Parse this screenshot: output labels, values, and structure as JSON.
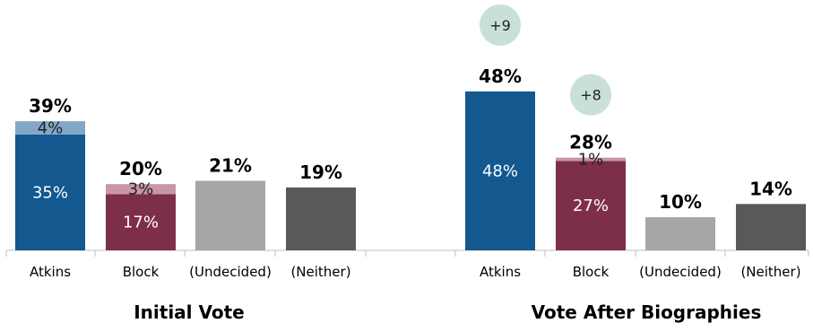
{
  "chart_data": {
    "type": "bar",
    "stacked": true,
    "ylim": [
      0,
      50
    ],
    "grid": false,
    "legend": "none",
    "colors": {
      "atkins_base": "#13588f",
      "atkins_lean": "#82a7c9",
      "block_base": "#7d2e4b",
      "block_lean": "#c896a6",
      "undecided": "#a6a6a6",
      "neither": "#595959",
      "badge": "#c9e0da",
      "axis": "#bfbfbf"
    },
    "groups": [
      {
        "title": "Initial Vote",
        "bars": [
          {
            "category": "Atkins",
            "total": 39,
            "total_label": "39%",
            "segments": [
              {
                "value": 35,
                "label": "35%",
                "color_key": "atkins_base",
                "dark_text": false
              },
              {
                "value": 4,
                "label": "4%",
                "color_key": "atkins_lean",
                "dark_text": true
              }
            ]
          },
          {
            "category": "Block",
            "total": 20,
            "total_label": "20%",
            "segments": [
              {
                "value": 17,
                "label": "17%",
                "color_key": "block_base",
                "dark_text": false
              },
              {
                "value": 3,
                "label": "3%",
                "color_key": "block_lean",
                "dark_text": true
              }
            ]
          },
          {
            "category": "(Undecided)",
            "total": 21,
            "total_label": "21%",
            "segments": [
              {
                "value": 21,
                "label": "",
                "color_key": "undecided",
                "dark_text": false
              }
            ]
          },
          {
            "category": "(Neither)",
            "total": 19,
            "total_label": "19%",
            "segments": [
              {
                "value": 19,
                "label": "",
                "color_key": "neither",
                "dark_text": false
              }
            ]
          }
        ]
      },
      {
        "title": "Vote After Biographies",
        "bars": [
          {
            "category": "Atkins",
            "total": 48,
            "total_label": "48%",
            "badge": "+9",
            "segments": [
              {
                "value": 48,
                "label": "48%",
                "color_key": "atkins_base",
                "dark_text": false
              }
            ]
          },
          {
            "category": "Block",
            "total": 28,
            "total_label": "28%",
            "badge": "+8",
            "segments": [
              {
                "value": 27,
                "label": "27%",
                "color_key": "block_base",
                "dark_text": false
              },
              {
                "value": 1,
                "label": "1%",
                "color_key": "block_lean",
                "dark_text": true
              }
            ]
          },
          {
            "category": "(Undecided)",
            "total": 10,
            "total_label": "10%",
            "segments": [
              {
                "value": 10,
                "label": "",
                "color_key": "undecided",
                "dark_text": false
              }
            ]
          },
          {
            "category": "(Neither)",
            "total": 14,
            "total_label": "14%",
            "segments": [
              {
                "value": 14,
                "label": "",
                "color_key": "neither",
                "dark_text": false
              }
            ]
          }
        ]
      }
    ]
  }
}
